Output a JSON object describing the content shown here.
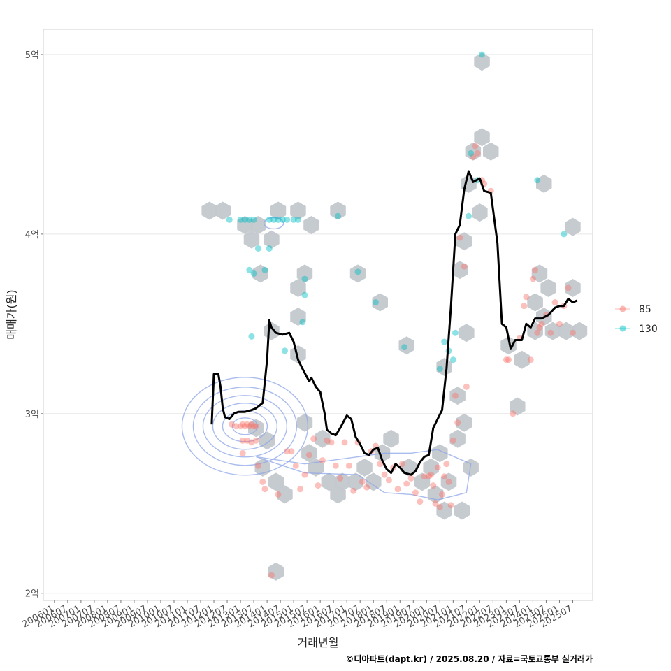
{
  "chart_data": {
    "type": "scatter",
    "title": "",
    "xlabel": "거래년월",
    "ylabel": "매매가(원)",
    "caption": "©디아파트(dapt.kr) / 2025.08.20 / 자료=국토교통부 실거래가",
    "x_ticks": [
      "200601",
      "200607",
      "200701",
      "200707",
      "200801",
      "200807",
      "200901",
      "200907",
      "201001",
      "201007",
      "201101",
      "201107",
      "201201",
      "201207",
      "201301",
      "201307",
      "201401",
      "201407",
      "201501",
      "201507",
      "201601",
      "201607",
      "201701",
      "201707",
      "201801",
      "201807",
      "201901",
      "201907",
      "202001",
      "202007",
      "202101",
      "202107",
      "202201",
      "202207",
      "202301",
      "202307",
      "202401",
      "202407",
      "202501",
      "202507"
    ],
    "y_ticks": [
      {
        "value": 2.0,
        "label": "2억"
      },
      {
        "value": 3.0,
        "label": "3억"
      },
      {
        "value": 4.0,
        "label": "4억"
      },
      {
        "value": 5.0,
        "label": "5억"
      }
    ],
    "xlim": [
      "2005-08",
      "2026-04"
    ],
    "ylim": [
      1.96,
      5.14
    ],
    "y_unit": "억",
    "grid": true,
    "legend_position": "right",
    "legend": [
      {
        "name": "85",
        "color": "#F8766D"
      },
      {
        "name": "130",
        "color": "#00BFC4"
      }
    ],
    "moving_average_color": "#000000",
    "hexbin_color": "#c3c8ce",
    "density_contour_color": "#8ea6e8",
    "series": [
      {
        "name": "85",
        "color": "#F8766D",
        "points": [
          [
            "2012-09",
            2.94
          ],
          [
            "2012-11",
            2.93
          ],
          [
            "2013-01",
            2.93
          ],
          [
            "2013-02",
            2.94
          ],
          [
            "2013-03",
            2.93
          ],
          [
            "2013-04",
            2.94
          ],
          [
            "2013-05",
            2.93
          ],
          [
            "2013-06",
            2.94
          ],
          [
            "2013-07",
            2.93
          ],
          [
            "2013-08",
            2.93
          ],
          [
            "2013-02",
            2.85
          ],
          [
            "2013-04",
            2.85
          ],
          [
            "2013-06",
            2.84
          ],
          [
            "2013-08",
            2.85
          ],
          [
            "2013-02",
            2.78
          ],
          [
            "2013-09",
            2.71
          ],
          [
            "2013-11",
            2.62
          ],
          [
            "2013-12",
            2.58
          ],
          [
            "2014-06",
            2.55
          ],
          [
            "2014-10",
            2.79
          ],
          [
            "2014-12",
            2.79
          ],
          [
            "2015-02",
            2.71
          ],
          [
            "2015-04",
            2.58
          ],
          [
            "2015-06",
            2.66
          ],
          [
            "2015-08",
            2.77
          ],
          [
            "2015-10",
            2.86
          ],
          [
            "2015-12",
            2.6
          ],
          [
            "2016-02",
            2.74
          ],
          [
            "2016-04",
            2.85
          ],
          [
            "2016-06",
            2.84
          ],
          [
            "2016-08",
            2.71
          ],
          [
            "2016-10",
            2.64
          ],
          [
            "2016-12",
            2.84
          ],
          [
            "2017-02",
            2.71
          ],
          [
            "2017-04",
            2.57
          ],
          [
            "2017-06",
            2.84
          ],
          [
            "2017-08",
            2.62
          ],
          [
            "2017-10",
            2.59
          ],
          [
            "2017-12",
            2.79
          ],
          [
            "2018-02",
            2.82
          ],
          [
            "2018-04",
            2.72
          ],
          [
            "2018-06",
            2.66
          ],
          [
            "2018-08",
            2.63
          ],
          [
            "2018-10",
            2.7
          ],
          [
            "2018-12",
            2.58
          ],
          [
            "2019-02",
            2.72
          ],
          [
            "2019-04",
            2.61
          ],
          [
            "2019-06",
            2.64
          ],
          [
            "2019-08",
            2.56
          ],
          [
            "2019-10",
            2.51
          ],
          [
            "2019-12",
            2.65
          ],
          [
            "2020-02",
            2.65
          ],
          [
            "2020-04",
            2.6
          ],
          [
            "2020-06",
            2.7
          ],
          [
            "2020-08",
            2.55
          ],
          [
            "2020-10",
            2.72
          ],
          [
            "2020-12",
            2.49
          ],
          [
            "2020-03",
            2.66
          ],
          [
            "2020-05",
            2.5
          ],
          [
            "2020-07",
            2.48
          ],
          [
            "2020-09",
            2.65
          ],
          [
            "2020-11",
            2.62
          ],
          [
            "2021-01",
            2.85
          ],
          [
            "2021-02",
            3.1
          ],
          [
            "2021-03",
            2.95
          ],
          [
            "2021-04",
            3.98
          ],
          [
            "2021-06",
            3.82
          ],
          [
            "2021-07",
            3.15
          ],
          [
            "2021-10",
            4.43
          ],
          [
            "2021-11",
            4.49
          ],
          [
            "2021-12",
            4.45
          ],
          [
            "2022-02",
            4.3
          ],
          [
            "2022-03",
            4.28
          ],
          [
            "2022-06",
            4.24
          ],
          [
            "2023-01",
            3.3
          ],
          [
            "2023-02",
            3.3
          ],
          [
            "2023-04",
            3.0
          ],
          [
            "2023-07",
            3.42
          ],
          [
            "2023-09",
            3.6
          ],
          [
            "2023-10",
            3.65
          ],
          [
            "2024-01",
            3.75
          ],
          [
            "2024-02",
            3.8
          ],
          [
            "2024-03",
            3.45
          ],
          [
            "2024-04",
            3.48
          ],
          [
            "2024-05",
            3.5
          ],
          [
            "2024-07",
            3.55
          ],
          [
            "2024-09",
            3.45
          ],
          [
            "2024-11",
            3.62
          ],
          [
            "2025-01",
            3.5
          ],
          [
            "2025-03",
            3.6
          ],
          [
            "2025-05",
            3.7
          ],
          [
            "2025-07",
            3.45
          ],
          [
            "2023-12",
            3.3
          ],
          [
            "2014-03",
            2.1
          ]
        ]
      },
      {
        "name": "130",
        "color": "#00BFC4",
        "points": [
          [
            "2012-08",
            4.08
          ],
          [
            "2013-01",
            4.08
          ],
          [
            "2013-03",
            4.08
          ],
          [
            "2013-05",
            4.08
          ],
          [
            "2013-07",
            4.08
          ],
          [
            "2014-02",
            4.08
          ],
          [
            "2014-04",
            4.08
          ],
          [
            "2014-06",
            4.08
          ],
          [
            "2014-08",
            4.08
          ],
          [
            "2014-10",
            4.08
          ],
          [
            "2015-01",
            4.08
          ],
          [
            "2015-03",
            4.08
          ],
          [
            "2016-09",
            4.1
          ],
          [
            "2013-09",
            3.92
          ],
          [
            "2014-02",
            3.92
          ],
          [
            "2013-05",
            3.8
          ],
          [
            "2013-07",
            3.78
          ],
          [
            "2013-12",
            3.8
          ],
          [
            "2015-06",
            3.75
          ],
          [
            "2015-06",
            3.66
          ],
          [
            "2015-05",
            3.51
          ],
          [
            "2013-06",
            3.43
          ],
          [
            "2014-09",
            3.35
          ],
          [
            "2017-06",
            3.79
          ],
          [
            "2018-02",
            3.62
          ],
          [
            "2019-03",
            3.37
          ],
          [
            "2020-09",
            3.4
          ],
          [
            "2020-07",
            3.25
          ],
          [
            "2020-11",
            3.35
          ],
          [
            "2021-01",
            3.3
          ],
          [
            "2021-02",
            3.45
          ],
          [
            "2021-09",
            4.45
          ],
          [
            "2021-12",
            4.3
          ],
          [
            "2021-08",
            4.1
          ],
          [
            "2022-02",
            5.0
          ],
          [
            "2024-03",
            4.3
          ],
          [
            "2025-03",
            4.0
          ]
        ]
      }
    ],
    "moving_average": [
      [
        "2011-12",
        2.94
      ],
      [
        "2012-01",
        3.22
      ],
      [
        "2012-03",
        3.22
      ],
      [
        "2012-04",
        3.15
      ],
      [
        "2012-05",
        3.03
      ],
      [
        "2012-06",
        2.98
      ],
      [
        "2012-08",
        2.97
      ],
      [
        "2012-10",
        3.0
      ],
      [
        "2012-12",
        3.01
      ],
      [
        "2013-03",
        3.01
      ],
      [
        "2013-06",
        3.02
      ],
      [
        "2013-08",
        3.03
      ],
      [
        "2013-11",
        3.06
      ],
      [
        "2014-01",
        3.3
      ],
      [
        "2014-02",
        3.52
      ],
      [
        "2014-03",
        3.48
      ],
      [
        "2014-05",
        3.45
      ],
      [
        "2014-08",
        3.44
      ],
      [
        "2014-11",
        3.45
      ],
      [
        "2015-01",
        3.4
      ],
      [
        "2015-03",
        3.3
      ],
      [
        "2015-05",
        3.25
      ],
      [
        "2015-08",
        3.18
      ],
      [
        "2015-09",
        3.2
      ],
      [
        "2015-11",
        3.15
      ],
      [
        "2016-01",
        3.12
      ],
      [
        "2016-03",
        3.0
      ],
      [
        "2016-04",
        2.91
      ],
      [
        "2016-06",
        2.89
      ],
      [
        "2016-08",
        2.88
      ],
      [
        "2016-10",
        2.92
      ],
      [
        "2017-01",
        2.99
      ],
      [
        "2017-03",
        2.97
      ],
      [
        "2017-05",
        2.87
      ],
      [
        "2017-07",
        2.83
      ],
      [
        "2017-09",
        2.78
      ],
      [
        "2017-11",
        2.77
      ],
      [
        "2018-01",
        2.8
      ],
      [
        "2018-03",
        2.81
      ],
      [
        "2018-05",
        2.74
      ],
      [
        "2018-07",
        2.69
      ],
      [
        "2018-09",
        2.67
      ],
      [
        "2018-11",
        2.72
      ],
      [
        "2019-01",
        2.7
      ],
      [
        "2019-03",
        2.67
      ],
      [
        "2019-06",
        2.66
      ],
      [
        "2019-08",
        2.68
      ],
      [
        "2019-10",
        2.73
      ],
      [
        "2019-12",
        2.76
      ],
      [
        "2020-02",
        2.77
      ],
      [
        "2020-04",
        2.92
      ],
      [
        "2020-06",
        2.97
      ],
      [
        "2020-08",
        3.02
      ],
      [
        "2020-10",
        3.25
      ],
      [
        "2020-12",
        3.6
      ],
      [
        "2021-02",
        4.0
      ],
      [
        "2021-04",
        4.05
      ],
      [
        "2021-06",
        4.25
      ],
      [
        "2021-08",
        4.35
      ],
      [
        "2021-10",
        4.29
      ],
      [
        "2022-01",
        4.31
      ],
      [
        "2022-03",
        4.24
      ],
      [
        "2022-06",
        4.23
      ],
      [
        "2022-09",
        3.95
      ],
      [
        "2022-11",
        3.5
      ],
      [
        "2023-01",
        3.48
      ],
      [
        "2023-03",
        3.36
      ],
      [
        "2023-05",
        3.41
      ],
      [
        "2023-08",
        3.41
      ],
      [
        "2023-10",
        3.5
      ],
      [
        "2023-12",
        3.48
      ],
      [
        "2024-02",
        3.53
      ],
      [
        "2024-05",
        3.53
      ],
      [
        "2024-08",
        3.55
      ],
      [
        "2024-11",
        3.59
      ],
      [
        "2025-01",
        3.6
      ],
      [
        "2025-03",
        3.6
      ],
      [
        "2025-05",
        3.64
      ],
      [
        "2025-07",
        3.62
      ],
      [
        "2025-09",
        3.63
      ]
    ],
    "hexbins": [
      [
        "2011-11",
        4.13
      ],
      [
        "2012-05",
        4.13
      ],
      [
        "2013-03",
        4.05
      ],
      [
        "2013-09",
        4.05
      ],
      [
        "2014-06",
        4.13
      ],
      [
        "2015-03",
        4.13
      ],
      [
        "2015-09",
        4.05
      ],
      [
        "2016-09",
        4.13
      ],
      [
        "2013-06",
        3.97
      ],
      [
        "2014-03",
        3.97
      ],
      [
        "2013-10",
        3.78
      ],
      [
        "2015-06",
        3.78
      ],
      [
        "2015-03",
        3.7
      ],
      [
        "2017-06",
        3.78
      ],
      [
        "2018-04",
        3.62
      ],
      [
        "2015-03",
        3.54
      ],
      [
        "2014-03",
        3.46
      ],
      [
        "2015-03",
        3.33
      ],
      [
        "2019-04",
        3.38
      ],
      [
        "2013-08",
        2.92
      ],
      [
        "2014-01",
        2.85
      ],
      [
        "2013-11",
        2.7
      ],
      [
        "2014-05",
        2.62
      ],
      [
        "2014-09",
        2.55
      ],
      [
        "2015-06",
        2.95
      ],
      [
        "2016-02",
        2.86
      ],
      [
        "2015-08",
        2.78
      ],
      [
        "2015-11",
        2.7
      ],
      [
        "2016-05",
        2.62
      ],
      [
        "2016-11",
        2.62
      ],
      [
        "2016-09",
        2.55
      ],
      [
        "2017-05",
        2.62
      ],
      [
        "2017-09",
        2.7
      ],
      [
        "2018-01",
        2.62
      ],
      [
        "2018-05",
        2.78
      ],
      [
        "2018-09",
        2.86
      ],
      [
        "2019-05",
        2.7
      ],
      [
        "2019-11",
        2.62
      ],
      [
        "2020-03",
        2.7
      ],
      [
        "2020-07",
        2.78
      ],
      [
        "2020-11",
        2.62
      ],
      [
        "2020-05",
        2.55
      ],
      [
        "2020-09",
        2.46
      ],
      [
        "2021-05",
        2.46
      ],
      [
        "2021-09",
        2.7
      ],
      [
        "2021-03",
        2.86
      ],
      [
        "2021-06",
        2.95
      ],
      [
        "2021-03",
        3.1
      ],
      [
        "2020-09",
        3.26
      ],
      [
        "2021-07",
        3.45
      ],
      [
        "2021-04",
        3.8
      ],
      [
        "2021-06",
        3.96
      ],
      [
        "2022-01",
        4.12
      ],
      [
        "2021-08",
        4.28
      ],
      [
        "2021-10",
        4.46
      ],
      [
        "2022-02",
        4.54
      ],
      [
        "2022-06",
        4.46
      ],
      [
        "2022-02",
        4.96
      ],
      [
        "2023-02",
        3.38
      ],
      [
        "2023-08",
        3.3
      ],
      [
        "2024-02",
        3.46
      ],
      [
        "2024-06",
        3.54
      ],
      [
        "2024-02",
        3.62
      ],
      [
        "2024-08",
        3.7
      ],
      [
        "2024-04",
        3.78
      ],
      [
        "2024-10",
        3.46
      ],
      [
        "2025-04",
        3.46
      ],
      [
        "2025-07",
        3.7
      ],
      [
        "2025-10",
        3.46
      ],
      [
        "2023-06",
        3.04
      ],
      [
        "2024-06",
        4.28
      ],
      [
        "2025-07",
        4.04
      ],
      [
        "2014-05",
        2.12
      ]
    ]
  }
}
